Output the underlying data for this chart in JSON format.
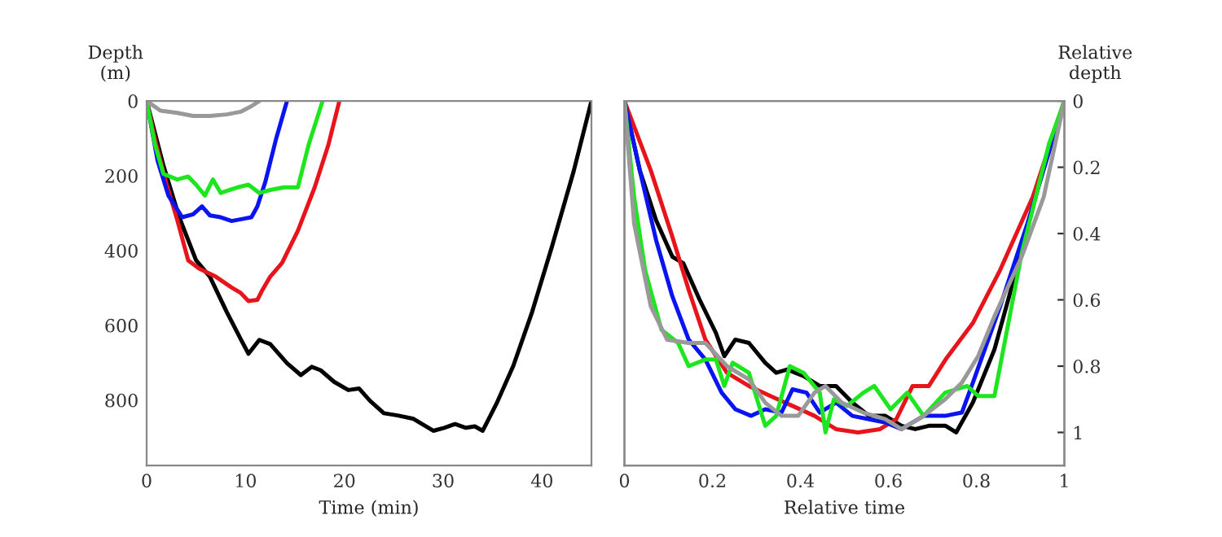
{
  "chart_data": [
    {
      "type": "line",
      "xlabel": "Time (min)",
      "ylabel": "Depth\n(m)",
      "xlim": [
        0,
        45
      ],
      "ylim": [
        975,
        0
      ],
      "xticks": [
        0,
        10,
        20,
        30,
        40
      ],
      "yticks": [
        0,
        200,
        400,
        600,
        800
      ],
      "grid": false,
      "marker": "none",
      "line_style": "solid",
      "series": [
        {
          "color": "#000000",
          "x": [
            0,
            1.7,
            3.3,
            5.0,
            6.4,
            8.1,
            9.5,
            10.3,
            11.4,
            12.5,
            14.2,
            15.6,
            16.7,
            17.6,
            18.96,
            20.4,
            21.5,
            22.6,
            24.0,
            25.4,
            27.0,
            29.0,
            30.1,
            31.2,
            32.3,
            33.2,
            34.0,
            35.4,
            37.1,
            39.0,
            41.0,
            43.2,
            45
          ],
          "values": [
            0,
            173,
            311,
            426,
            470,
            564,
            636,
            676,
            639,
            650,
            701,
            733,
            711,
            720,
            751,
            773,
            769,
            802,
            835,
            841,
            850,
            882,
            874,
            864,
            874,
            870,
            882,
            809,
            708,
            564,
            390,
            188,
            0
          ]
        },
        {
          "color": "#e8141c",
          "x": [
            0,
            0.84,
            1.95,
            3.1,
            4.2,
            5.3,
            7.0,
            8.6,
            9.5,
            10.3,
            11.2,
            11.7,
            12.5,
            13.7,
            15.3,
            17.0,
            18.4,
            19.5
          ],
          "values": [
            0,
            101,
            217,
            318,
            426,
            448,
            470,
            499,
            513,
            535,
            532,
            506,
            470,
            433,
            347,
            231,
            116,
            0
          ]
        },
        {
          "color": "#0a14f0",
          "x": [
            0,
            1.1,
            2.2,
            3.6,
            4.7,
            5.6,
            6.4,
            7.5,
            8.6,
            9.8,
            10.6,
            11.2,
            12.0,
            13.1,
            14.2
          ],
          "values": [
            0,
            159,
            253,
            311,
            303,
            282,
            306,
            311,
            321,
            315,
            311,
            282,
            217,
            101,
            0
          ]
        },
        {
          "color": "#1ee61e",
          "x": [
            0,
            0.84,
            1.7,
            3.1,
            4.2,
            5.0,
            5.9,
            6.7,
            7.5,
            8.4,
            9.2,
            10.3,
            11.4,
            12.5,
            13.9,
            15.3,
            16.4,
            17.8
          ],
          "values": [
            0,
            116,
            195,
            210,
            202,
            224,
            253,
            210,
            246,
            238,
            231,
            224,
            246,
            238,
            231,
            231,
            116,
            0
          ]
        },
        {
          "color": "#999999",
          "x": [
            0,
            1.4,
            3.1,
            4.7,
            6.4,
            8.1,
            9.5,
            10.6,
            11.4
          ],
          "values": [
            0,
            26,
            32,
            40,
            40,
            36,
            29,
            14,
            0
          ]
        }
      ]
    },
    {
      "type": "line",
      "xlabel": "Relative time",
      "y2label": "Relative\ndepth",
      "xlim": [
        0,
        1
      ],
      "y2lim": [
        1.1,
        0
      ],
      "xticks": [
        0,
        0.2,
        0.4,
        0.6,
        0.8,
        1
      ],
      "y2ticks": [
        0,
        0.2,
        0.4,
        0.6,
        0.8,
        1
      ],
      "grid": false,
      "marker": "none",
      "line_style": "solid",
      "series": [
        {
          "axis": "y2",
          "color": "#000000",
          "x": [
            0,
            0.035,
            0.072,
            0.109,
            0.134,
            0.171,
            0.208,
            0.227,
            0.252,
            0.283,
            0.32,
            0.345,
            0.37,
            0.407,
            0.444,
            0.481,
            0.518,
            0.556,
            0.593,
            0.63,
            0.661,
            0.692,
            0.73,
            0.754,
            0.792,
            0.841,
            0.891,
            0.94,
            1
          ],
          "values": [
            0,
            0.21,
            0.36,
            0.47,
            0.49,
            0.6,
            0.7,
            0.77,
            0.72,
            0.73,
            0.79,
            0.82,
            0.81,
            0.83,
            0.86,
            0.86,
            0.91,
            0.95,
            0.95,
            0.98,
            0.99,
            0.98,
            0.98,
            1.0,
            0.91,
            0.75,
            0.51,
            0.26,
            0
          ]
        },
        {
          "axis": "y2",
          "color": "#e8141c",
          "x": [
            0,
            0.06,
            0.109,
            0.146,
            0.184,
            0.233,
            0.283,
            0.332,
            0.382,
            0.432,
            0.481,
            0.531,
            0.581,
            0.618,
            0.655,
            0.692,
            0.73,
            0.792,
            0.854,
            0.928,
            1
          ],
          "values": [
            0,
            0.21,
            0.41,
            0.57,
            0.72,
            0.82,
            0.86,
            0.89,
            0.92,
            0.95,
            0.99,
            1.0,
            0.99,
            0.96,
            0.86,
            0.86,
            0.78,
            0.67,
            0.51,
            0.29,
            0
          ]
        },
        {
          "axis": "y2",
          "color": "#0a14f0",
          "x": [
            0,
            0.035,
            0.072,
            0.109,
            0.146,
            0.184,
            0.221,
            0.252,
            0.288,
            0.32,
            0.357,
            0.382,
            0.414,
            0.444,
            0.481,
            0.518,
            0.556,
            0.593,
            0.63,
            0.68,
            0.729,
            0.767,
            0.792,
            0.854,
            0.916,
            1
          ],
          "values": [
            0,
            0.21,
            0.42,
            0.59,
            0.72,
            0.78,
            0.88,
            0.93,
            0.95,
            0.93,
            0.94,
            0.87,
            0.88,
            0.94,
            0.91,
            0.95,
            0.96,
            0.97,
            0.99,
            0.95,
            0.95,
            0.94,
            0.85,
            0.62,
            0.37,
            0
          ]
        },
        {
          "axis": "y2",
          "color": "#1ee61e",
          "x": [
            0,
            0.022,
            0.047,
            0.084,
            0.122,
            0.146,
            0.184,
            0.208,
            0.227,
            0.246,
            0.283,
            0.32,
            0.345,
            0.376,
            0.407,
            0.444,
            0.457,
            0.476,
            0.506,
            0.543,
            0.568,
            0.605,
            0.643,
            0.68,
            0.729,
            0.779,
            0.804,
            0.841,
            0.903,
            0.965,
            1
          ],
          "values": [
            0,
            0.29,
            0.51,
            0.69,
            0.73,
            0.8,
            0.78,
            0.78,
            0.86,
            0.79,
            0.82,
            0.98,
            0.95,
            0.8,
            0.82,
            0.88,
            1.0,
            0.9,
            0.92,
            0.88,
            0.86,
            0.93,
            0.88,
            0.95,
            0.88,
            0.86,
            0.89,
            0.89,
            0.46,
            0.13,
            0
          ]
        },
        {
          "axis": "y2",
          "color": "#999999",
          "x": [
            0,
            0.022,
            0.06,
            0.097,
            0.146,
            0.184,
            0.233,
            0.283,
            0.32,
            0.357,
            0.395,
            0.432,
            0.457,
            0.494,
            0.543,
            0.593,
            0.63,
            0.68,
            0.729,
            0.767,
            0.804,
            0.841,
            0.903,
            0.953,
            1
          ],
          "values": [
            0,
            0.37,
            0.62,
            0.72,
            0.73,
            0.73,
            0.8,
            0.84,
            0.91,
            0.95,
            0.95,
            0.88,
            0.86,
            0.91,
            0.94,
            0.96,
            0.99,
            0.95,
            0.9,
            0.85,
            0.77,
            0.65,
            0.47,
            0.29,
            0
          ]
        }
      ]
    }
  ]
}
